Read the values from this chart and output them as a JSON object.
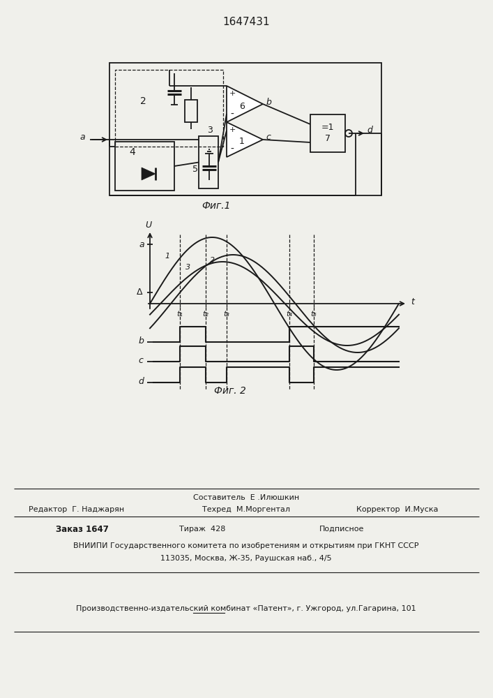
{
  "title": "1647431",
  "fig1_caption": "Фиг.1",
  "fig2_caption": "Фиг. 2",
  "bottom_line1": "Составитель  Е .Илюшкин",
  "bottom_line2_col1": "Редактор  Г. Наджарян",
  "bottom_line2_col2": "Техред  М.Моргентал",
  "bottom_line2_col3": "Корректор  И.Муска",
  "bottom_line3_col1": "Заказ 1647",
  "bottom_line3_col2": "Тираж  428",
  "bottom_line3_col3": "Подписное",
  "bottom_line4": "ВНИИПИ Государственного комитета по изобретениям и открытиям при ГКНТ СССР",
  "bottom_line5": "113035, Москва, Ж-35, Раушская наб., 4/5",
  "bottom_line6": "Производственно-издательский комбинат «Патент», г. Ужгород, ул.Гагарина, 101",
  "bg_color": "#f0f0eb",
  "line_color": "#1a1a1a"
}
